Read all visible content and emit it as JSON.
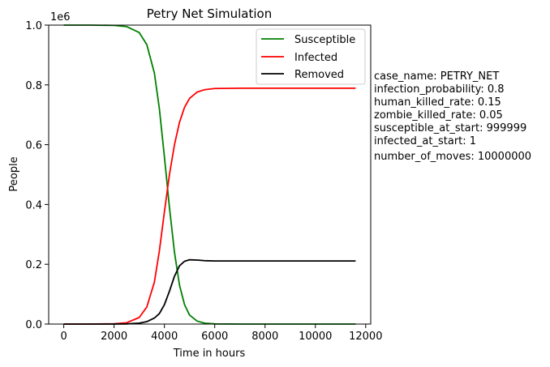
{
  "chart_data": {
    "type": "line",
    "title": "Petry Net Simulation",
    "xlabel": "Time in hours",
    "ylabel": "People",
    "y_offset_label": "1e6",
    "xlim": [
      -600,
      12200
    ],
    "ylim": [
      0,
      1000000
    ],
    "x_ticks": [
      0,
      2000,
      4000,
      6000,
      8000,
      10000,
      12000
    ],
    "x_tick_labels": [
      "0",
      "2000",
      "4000",
      "6000",
      "8000",
      "10000",
      "12000"
    ],
    "y_ticks": [
      0,
      200000,
      400000,
      600000,
      800000,
      1000000
    ],
    "y_tick_labels": [
      "0.0",
      "0.2",
      "0.4",
      "0.6",
      "0.8",
      "1.0"
    ],
    "grid": false,
    "legend_position": "top-right",
    "series": [
      {
        "name": "Susceptible",
        "color": "#008000",
        "x": [
          0,
          1000,
          2000,
          2500,
          3000,
          3300,
          3600,
          3800,
          4000,
          4200,
          4400,
          4600,
          4800,
          5000,
          5300,
          5600,
          6000,
          7000,
          8000,
          9000,
          10000,
          11600
        ],
        "y": [
          999999,
          999998,
          999000,
          995000,
          975000,
          935000,
          840000,
          720000,
          560000,
          390000,
          240000,
          130000,
          65000,
          30000,
          10000,
          3000,
          500,
          0,
          0,
          0,
          0,
          0
        ]
      },
      {
        "name": "Infected",
        "color": "#ff0000",
        "x": [
          0,
          1000,
          2000,
          2500,
          3000,
          3300,
          3600,
          3800,
          4000,
          4200,
          4400,
          4600,
          4800,
          5000,
          5300,
          5600,
          6000,
          7000,
          8000,
          9000,
          10000,
          11600
        ],
        "y": [
          1,
          2,
          900,
          4500,
          22000,
          57000,
          140000,
          245000,
          375000,
          500000,
          600000,
          675000,
          725000,
          755000,
          776000,
          784000,
          788000,
          789000,
          789000,
          789000,
          789000,
          789000
        ]
      },
      {
        "name": "Removed",
        "color": "#000000",
        "x": [
          0,
          1000,
          2000,
          2500,
          3000,
          3300,
          3600,
          3800,
          4000,
          4200,
          4400,
          4600,
          4800,
          5000,
          5300,
          5600,
          6000,
          7000,
          8000,
          9000,
          10000,
          11600
        ],
        "y": [
          0,
          0,
          100,
          500,
          3000,
          8000,
          20000,
          35000,
          65000,
          110000,
          160000,
          195000,
          210000,
          215000,
          214000,
          212000,
          211000,
          211000,
          211000,
          211000,
          211000,
          211000
        ]
      }
    ]
  },
  "parameters": [
    "case_name: PETRY_NET",
    "infection_probability: 0.8",
    "human_killed_rate: 0.15",
    "zombie_killed_rate: 0.05",
    "susceptible_at_start: 999999",
    "infected_at_start: 1",
    "number_of_moves: 10000000"
  ]
}
